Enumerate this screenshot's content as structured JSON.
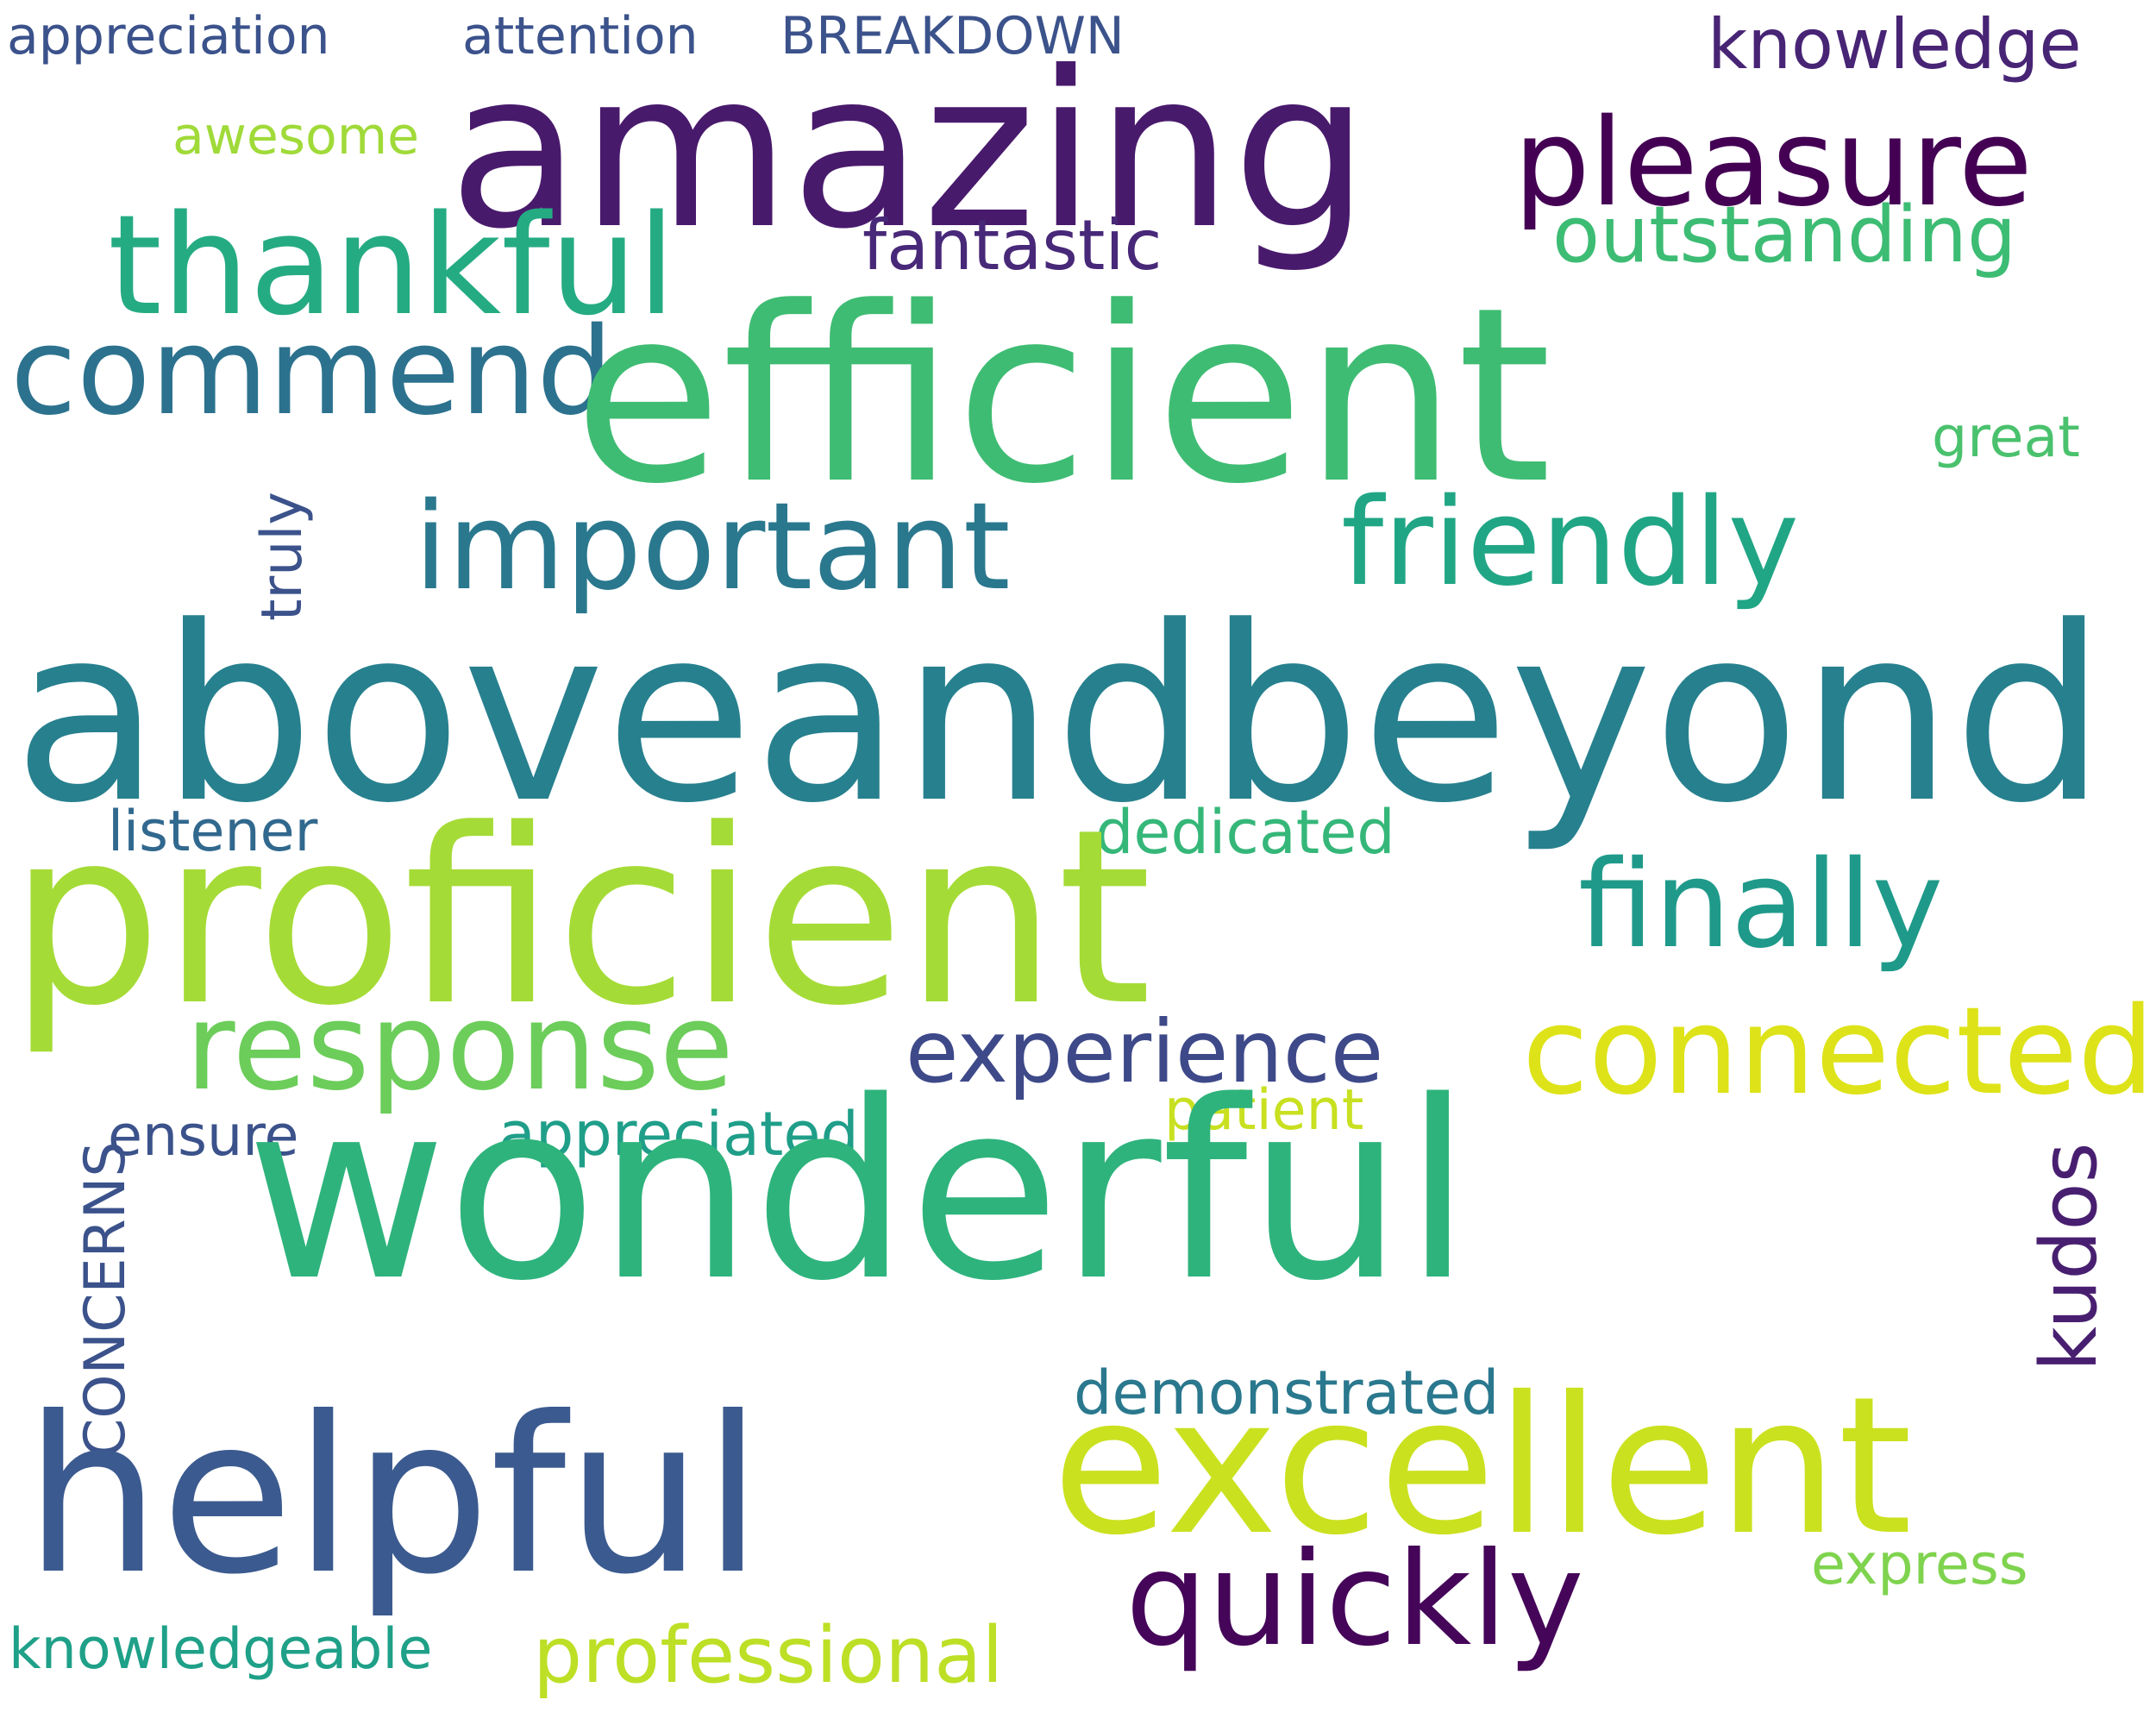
{
  "words": [
    {
      "text": "appreciation",
      "color": "#3b528b",
      "vertical": false
    },
    {
      "text": "attention",
      "color": "#3b528b",
      "vertical": false
    },
    {
      "text": "BREAKDOWN",
      "color": "#3b528b",
      "vertical": false
    },
    {
      "text": "knowledge",
      "color": "#482475",
      "vertical": false
    },
    {
      "text": "amazing",
      "color": "#481a6c",
      "vertical": false
    },
    {
      "text": "awesome",
      "color": "#a0da39",
      "vertical": false
    },
    {
      "text": "pleasure",
      "color": "#440154",
      "vertical": false
    },
    {
      "text": "thankful",
      "color": "#25ab82",
      "vertical": false
    },
    {
      "text": "fantastic",
      "color": "#482878",
      "vertical": false
    },
    {
      "text": "outstanding",
      "color": "#3dbc74",
      "vertical": false
    },
    {
      "text": "commend",
      "color": "#2c728e",
      "vertical": false
    },
    {
      "text": "efficient",
      "color": "#3fbc73",
      "vertical": false
    },
    {
      "text": "great",
      "color": "#4ac16d",
      "vertical": false
    },
    {
      "text": "truly",
      "color": "#3b528b",
      "vertical": true
    },
    {
      "text": "important",
      "color": "#2a788e",
      "vertical": false
    },
    {
      "text": "friendly",
      "color": "#21a685",
      "vertical": false
    },
    {
      "text": "aboveandbeyond",
      "color": "#27808e",
      "vertical": false
    },
    {
      "text": "listener",
      "color": "#31688e",
      "vertical": false
    },
    {
      "text": "dedicated",
      "color": "#35b779",
      "vertical": false
    },
    {
      "text": "proficient",
      "color": "#a5db36",
      "vertical": false
    },
    {
      "text": "finally",
      "color": "#1f9a8a",
      "vertical": false
    },
    {
      "text": "response",
      "color": "#6ccd5a",
      "vertical": false
    },
    {
      "text": "experience",
      "color": "#3e4989",
      "vertical": false
    },
    {
      "text": "connected",
      "color": "#dde318",
      "vertical": false
    },
    {
      "text": "patient",
      "color": "#c8e020",
      "vertical": false
    },
    {
      "text": "ensure",
      "color": "#3b528b",
      "vertical": false
    },
    {
      "text": "appreciated",
      "color": "#1f9e89",
      "vertical": false
    },
    {
      "text": "kudos",
      "color": "#481f70",
      "vertical": true
    },
    {
      "text": "CONCERNS",
      "color": "#3b528b",
      "vertical": true
    },
    {
      "text": "wonderful",
      "color": "#2eb37c",
      "vertical": false
    },
    {
      "text": "demonstrated",
      "color": "#2a788e",
      "vertical": false
    },
    {
      "text": "excellent",
      "color": "#cae11f",
      "vertical": false
    },
    {
      "text": "helpful",
      "color": "#3b5a8f",
      "vertical": false
    },
    {
      "text": "quickly",
      "color": "#450559",
      "vertical": false
    },
    {
      "text": "express",
      "color": "#7fd34e",
      "vertical": false
    },
    {
      "text": "knowledgeable",
      "color": "#1fa088",
      "vertical": false
    },
    {
      "text": "professional",
      "color": "#bddf26",
      "vertical": false
    }
  ]
}
